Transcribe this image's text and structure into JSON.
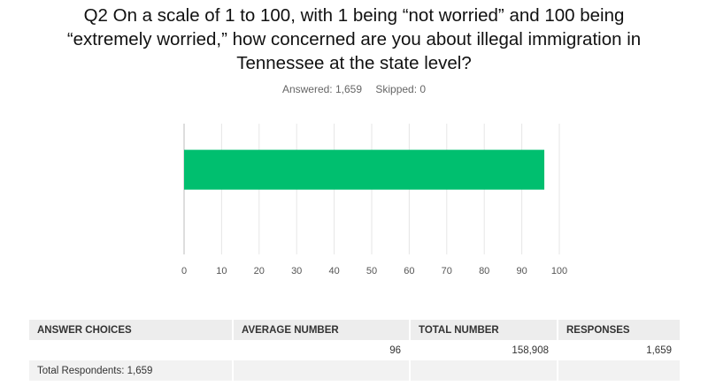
{
  "chart_data": {
    "type": "bar",
    "orientation": "horizontal",
    "title": "Q2 On a scale of 1 to 100, with 1 being “not worried” and 100 being “extremely worried,” how concerned are you about illegal immigration in Tennessee at the state level?",
    "answered": "Answered: 1,659",
    "skipped": "Skipped: 0",
    "categories": [
      null
    ],
    "values": [
      96
    ],
    "color": "#00bf6f",
    "xlim": [
      0,
      100
    ],
    "xticks": [
      0,
      10,
      20,
      30,
      40,
      50,
      60,
      70,
      80,
      90,
      100
    ],
    "grid": true
  },
  "table": {
    "header": [
      "ANSWER CHOICES",
      "AVERAGE NUMBER",
      "TOTAL NUMBER",
      "RESPONSES"
    ],
    "rows": [
      {
        "average": "96",
        "total": "158,908",
        "responses": "1,659"
      }
    ],
    "footer": "Total Respondents: 1,659"
  }
}
